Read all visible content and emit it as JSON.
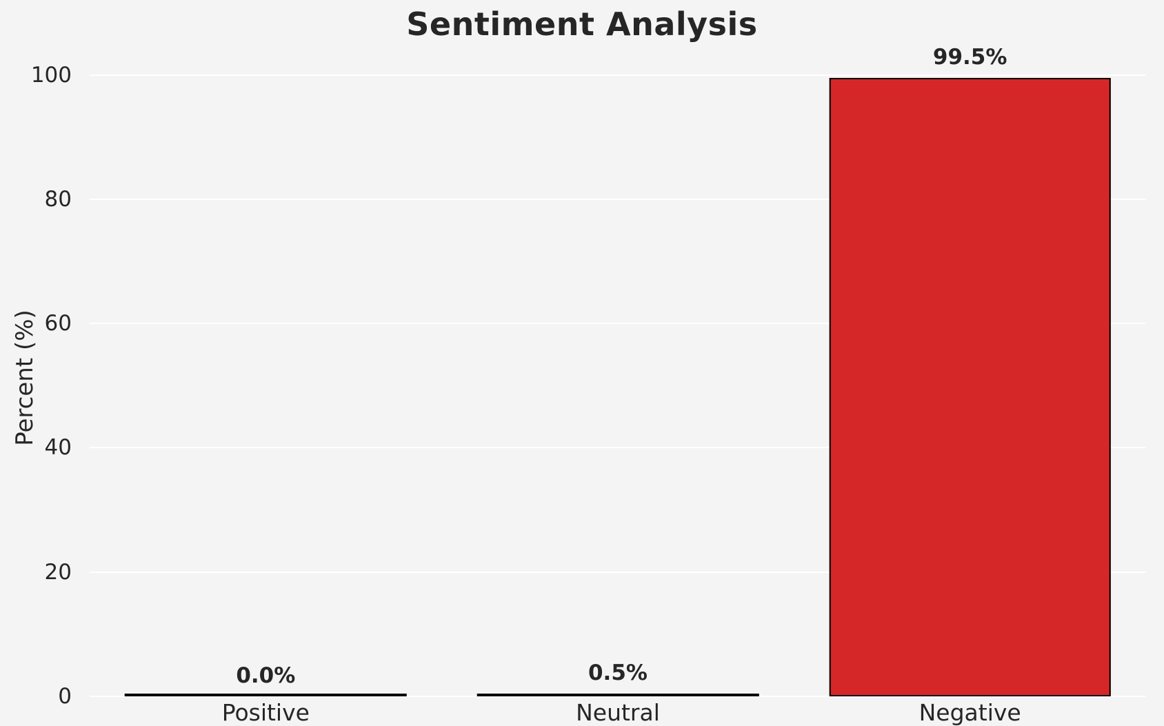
{
  "chart_data": {
    "type": "bar",
    "title": "Sentiment Analysis",
    "xlabel": "",
    "ylabel": "Percent (%)",
    "categories": [
      "Positive",
      "Neutral",
      "Negative"
    ],
    "values": [
      0.0,
      0.5,
      99.5
    ],
    "value_labels": [
      "0.0%",
      "0.5%",
      "99.5%"
    ],
    "bar_colors": [
      "#b0b0b0",
      "#f5e04a",
      "#d62728"
    ],
    "bar_edge_color": "#000000",
    "yticks": [
      0,
      20,
      40,
      60,
      80,
      100
    ],
    "ylim": [
      0,
      102.5
    ],
    "grid": true,
    "legend": "none",
    "background_color": "#f4f4f5",
    "grid_color": "#ffffff",
    "text_color": "#262626"
  }
}
